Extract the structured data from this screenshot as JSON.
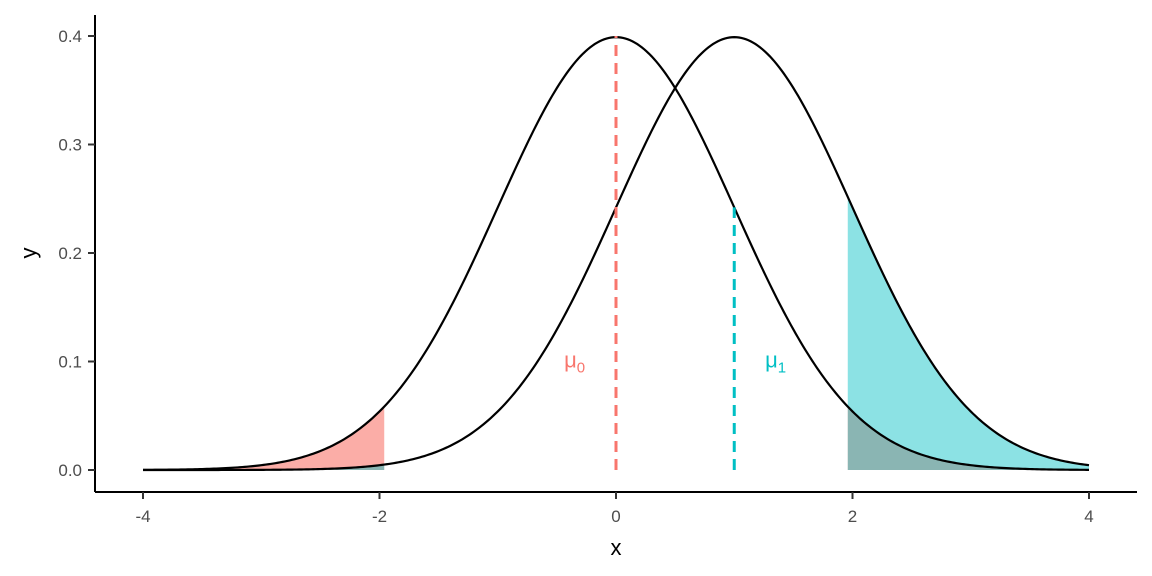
{
  "chart_data": {
    "type": "area",
    "title": "",
    "xlabel": "x",
    "ylabel": "y",
    "xlim": [
      -4,
      4
    ],
    "ylim": [
      0,
      0.4
    ],
    "x_ticks": [
      "-4",
      "-2",
      "0",
      "2",
      "4"
    ],
    "y_ticks": [
      "0.0",
      "0.1",
      "0.2",
      "0.3",
      "0.4"
    ],
    "grid": false,
    "legend": "none",
    "series": [
      {
        "mean": 0,
        "sd": 1,
        "x_range": [
          -4,
          4
        ],
        "color": "#000000"
      },
      {
        "mean": 1,
        "sd": 1,
        "x_range": [
          -4,
          4
        ],
        "color": "#000000"
      }
    ],
    "shaded_regions": [
      {
        "under_mean": 0,
        "x_range": [
          -4,
          -1.96
        ],
        "color": "#F8766D",
        "opacity": 0.6
      },
      {
        "under_mean": 0,
        "x_range": [
          1.96,
          4
        ],
        "color": "#F8766D",
        "opacity": 0.6
      },
      {
        "under_mean": 1,
        "x_range": [
          -4,
          -1.96
        ],
        "color": "#00BFC4",
        "opacity": 0.45
      },
      {
        "under_mean": 1,
        "x_range": [
          1.96,
          4
        ],
        "color": "#00BFC4",
        "opacity": 0.45
      }
    ],
    "vlines": [
      {
        "x": 0,
        "y_range": [
          0,
          0.4
        ],
        "color": "#F8766D",
        "style": "dashed"
      },
      {
        "x": 1,
        "y_range": [
          0,
          0.242
        ],
        "color": "#00BFC4",
        "style": "dashed"
      }
    ],
    "annotations": [
      {
        "symbol": "μ",
        "sub": "0",
        "x": -0.35,
        "y": 0.1,
        "color": "#F8766D"
      },
      {
        "symbol": "μ",
        "sub": "1",
        "x": 1.35,
        "y": 0.1,
        "color": "#00BFC4"
      }
    ]
  }
}
